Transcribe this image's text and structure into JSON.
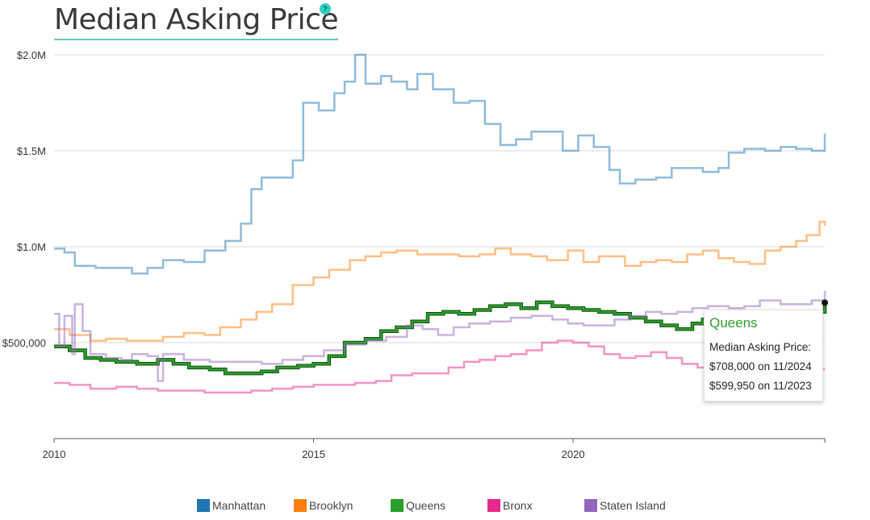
{
  "header": {
    "title": "Median Asking Price",
    "help_label": "?"
  },
  "tooltip": {
    "title": "Queens",
    "label": "Median Asking Price:",
    "line1": "$708,000 on 11/2024",
    "line2": "$599,950 on 11/2023"
  },
  "chart_data": {
    "type": "line",
    "title": "Median Asking Price",
    "xlabel": "",
    "ylabel": "",
    "xlim": [
      2010,
      2024.85
    ],
    "ylim": [
      0,
      2000000
    ],
    "x_ticks": [
      {
        "value": 2010,
        "label": "2010"
      },
      {
        "value": 2015,
        "label": "2015"
      },
      {
        "value": 2020,
        "label": "2020"
      }
    ],
    "y_ticks": [
      {
        "value": 500000,
        "label": "$500,000"
      },
      {
        "value": 1000000,
        "label": "$1.0M"
      },
      {
        "value": 1500000,
        "label": "$1.5M"
      },
      {
        "value": 2000000,
        "label": "$2.0M"
      }
    ],
    "grid": true,
    "step": true,
    "legend_position": "bottom",
    "series": [
      {
        "name": "Manhattan",
        "color": "#1f77b4",
        "points": [
          [
            2010,
            990000
          ],
          [
            2010.2,
            970000
          ],
          [
            2010.4,
            900000
          ],
          [
            2010.8,
            890000
          ],
          [
            2011.5,
            860000
          ],
          [
            2011.8,
            890000
          ],
          [
            2012.1,
            930000
          ],
          [
            2012.5,
            920000
          ],
          [
            2012.9,
            980000
          ],
          [
            2013.3,
            1030000
          ],
          [
            2013.6,
            1120000
          ],
          [
            2013.8,
            1300000
          ],
          [
            2014.0,
            1360000
          ],
          [
            2014.3,
            1360000
          ],
          [
            2014.6,
            1450000
          ],
          [
            2014.8,
            1750000
          ],
          [
            2015.1,
            1710000
          ],
          [
            2015.4,
            1800000
          ],
          [
            2015.6,
            1860000
          ],
          [
            2015.8,
            2000000
          ],
          [
            2016.0,
            1850000
          ],
          [
            2016.3,
            1890000
          ],
          [
            2016.5,
            1860000
          ],
          [
            2016.8,
            1820000
          ],
          [
            2017.0,
            1900000
          ],
          [
            2017.3,
            1820000
          ],
          [
            2017.7,
            1750000
          ],
          [
            2018.0,
            1760000
          ],
          [
            2018.3,
            1640000
          ],
          [
            2018.6,
            1530000
          ],
          [
            2018.9,
            1560000
          ],
          [
            2019.2,
            1600000
          ],
          [
            2019.5,
            1600000
          ],
          [
            2019.8,
            1500000
          ],
          [
            2020.1,
            1580000
          ],
          [
            2020.4,
            1520000
          ],
          [
            2020.7,
            1400000
          ],
          [
            2020.9,
            1330000
          ],
          [
            2021.2,
            1350000
          ],
          [
            2021.6,
            1360000
          ],
          [
            2021.9,
            1410000
          ],
          [
            2022.2,
            1410000
          ],
          [
            2022.5,
            1390000
          ],
          [
            2022.8,
            1410000
          ],
          [
            2023.0,
            1490000
          ],
          [
            2023.3,
            1510000
          ],
          [
            2023.7,
            1500000
          ],
          [
            2024.0,
            1520000
          ],
          [
            2024.3,
            1510000
          ],
          [
            2024.6,
            1500000
          ],
          [
            2024.85,
            1590000
          ]
        ]
      },
      {
        "name": "Brooklyn",
        "color": "#ff7f0e",
        "points": [
          [
            2010,
            570000
          ],
          [
            2010.3,
            540000
          ],
          [
            2010.7,
            510000
          ],
          [
            2011.0,
            520000
          ],
          [
            2011.4,
            510000
          ],
          [
            2011.8,
            510000
          ],
          [
            2012.1,
            530000
          ],
          [
            2012.5,
            550000
          ],
          [
            2012.9,
            540000
          ],
          [
            2013.2,
            580000
          ],
          [
            2013.6,
            620000
          ],
          [
            2013.9,
            660000
          ],
          [
            2014.2,
            700000
          ],
          [
            2014.6,
            800000
          ],
          [
            2015.0,
            840000
          ],
          [
            2015.3,
            880000
          ],
          [
            2015.7,
            930000
          ],
          [
            2016.0,
            950000
          ],
          [
            2016.3,
            970000
          ],
          [
            2016.6,
            980000
          ],
          [
            2017.0,
            960000
          ],
          [
            2017.4,
            960000
          ],
          [
            2017.8,
            950000
          ],
          [
            2018.2,
            960000
          ],
          [
            2018.5,
            990000
          ],
          [
            2018.8,
            960000
          ],
          [
            2019.2,
            950000
          ],
          [
            2019.5,
            930000
          ],
          [
            2019.9,
            980000
          ],
          [
            2020.2,
            920000
          ],
          [
            2020.5,
            950000
          ],
          [
            2020.8,
            950000
          ],
          [
            2021.0,
            900000
          ],
          [
            2021.3,
            920000
          ],
          [
            2021.6,
            930000
          ],
          [
            2021.9,
            920000
          ],
          [
            2022.2,
            960000
          ],
          [
            2022.5,
            980000
          ],
          [
            2022.8,
            940000
          ],
          [
            2023.1,
            920000
          ],
          [
            2023.4,
            910000
          ],
          [
            2023.7,
            980000
          ],
          [
            2024.0,
            1000000
          ],
          [
            2024.3,
            1030000
          ],
          [
            2024.5,
            1060000
          ],
          [
            2024.75,
            1130000
          ],
          [
            2024.85,
            1110000
          ]
        ]
      },
      {
        "name": "Queens",
        "color": "#2ca02c",
        "points": [
          [
            2010,
            480000
          ],
          [
            2010.3,
            460000
          ],
          [
            2010.6,
            420000
          ],
          [
            2010.9,
            410000
          ],
          [
            2011.2,
            400000
          ],
          [
            2011.6,
            390000
          ],
          [
            2012.0,
            410000
          ],
          [
            2012.3,
            390000
          ],
          [
            2012.6,
            370000
          ],
          [
            2013.0,
            360000
          ],
          [
            2013.3,
            340000
          ],
          [
            2013.7,
            340000
          ],
          [
            2014.0,
            350000
          ],
          [
            2014.3,
            370000
          ],
          [
            2014.7,
            380000
          ],
          [
            2015.0,
            390000
          ],
          [
            2015.3,
            430000
          ],
          [
            2015.6,
            500000
          ],
          [
            2016.0,
            520000
          ],
          [
            2016.3,
            560000
          ],
          [
            2016.6,
            580000
          ],
          [
            2016.9,
            610000
          ],
          [
            2017.2,
            650000
          ],
          [
            2017.5,
            660000
          ],
          [
            2017.8,
            650000
          ],
          [
            2018.1,
            670000
          ],
          [
            2018.4,
            690000
          ],
          [
            2018.7,
            700000
          ],
          [
            2019.0,
            680000
          ],
          [
            2019.3,
            710000
          ],
          [
            2019.6,
            690000
          ],
          [
            2019.9,
            680000
          ],
          [
            2020.2,
            670000
          ],
          [
            2020.5,
            660000
          ],
          [
            2020.8,
            650000
          ],
          [
            2021.1,
            630000
          ],
          [
            2021.4,
            610000
          ],
          [
            2021.7,
            590000
          ],
          [
            2022.0,
            570000
          ],
          [
            2022.3,
            600000
          ],
          [
            2022.5,
            620000
          ],
          [
            2022.8,
            610000
          ],
          [
            2023.0,
            600000
          ],
          [
            2023.3,
            610000
          ],
          [
            2023.6,
            620000
          ],
          [
            2024.0,
            620000
          ],
          [
            2024.4,
            640000
          ],
          [
            2024.6,
            660000
          ],
          [
            2024.85,
            708000
          ]
        ]
      },
      {
        "name": "Bronx",
        "color": "#e7298a",
        "points": [
          [
            2010,
            290000
          ],
          [
            2010.3,
            280000
          ],
          [
            2010.7,
            260000
          ],
          [
            2011.2,
            270000
          ],
          [
            2011.6,
            260000
          ],
          [
            2012.0,
            250000
          ],
          [
            2012.5,
            250000
          ],
          [
            2012.9,
            240000
          ],
          [
            2013.4,
            240000
          ],
          [
            2013.8,
            250000
          ],
          [
            2014.2,
            260000
          ],
          [
            2014.6,
            270000
          ],
          [
            2015.0,
            280000
          ],
          [
            2015.4,
            280000
          ],
          [
            2015.8,
            290000
          ],
          [
            2016.2,
            300000
          ],
          [
            2016.5,
            330000
          ],
          [
            2016.9,
            340000
          ],
          [
            2017.3,
            340000
          ],
          [
            2017.6,
            370000
          ],
          [
            2017.9,
            400000
          ],
          [
            2018.2,
            410000
          ],
          [
            2018.5,
            430000
          ],
          [
            2018.8,
            440000
          ],
          [
            2019.1,
            460000
          ],
          [
            2019.4,
            500000
          ],
          [
            2019.7,
            510000
          ],
          [
            2020.0,
            500000
          ],
          [
            2020.3,
            480000
          ],
          [
            2020.6,
            440000
          ],
          [
            2020.9,
            420000
          ],
          [
            2021.2,
            430000
          ],
          [
            2021.5,
            450000
          ],
          [
            2021.8,
            420000
          ],
          [
            2022.1,
            390000
          ],
          [
            2022.4,
            370000
          ],
          [
            2022.7,
            390000
          ],
          [
            2023.0,
            380000
          ],
          [
            2023.4,
            390000
          ],
          [
            2023.8,
            380000
          ],
          [
            2024.2,
            370000
          ],
          [
            2024.6,
            360000
          ],
          [
            2024.85,
            360000
          ]
        ]
      },
      {
        "name": "Staten Island",
        "color": "#9467bd",
        "points": [
          [
            2010,
            650000
          ],
          [
            2010.1,
            480000
          ],
          [
            2010.2,
            640000
          ],
          [
            2010.35,
            440000
          ],
          [
            2010.4,
            700000
          ],
          [
            2010.55,
            560000
          ],
          [
            2010.7,
            440000
          ],
          [
            2011.0,
            420000
          ],
          [
            2011.3,
            410000
          ],
          [
            2011.5,
            440000
          ],
          [
            2011.8,
            430000
          ],
          [
            2012.0,
            300000
          ],
          [
            2012.1,
            440000
          ],
          [
            2012.5,
            410000
          ],
          [
            2013.0,
            400000
          ],
          [
            2013.5,
            400000
          ],
          [
            2014.0,
            390000
          ],
          [
            2014.4,
            410000
          ],
          [
            2014.8,
            430000
          ],
          [
            2015.2,
            460000
          ],
          [
            2015.6,
            490000
          ],
          [
            2016.0,
            510000
          ],
          [
            2016.4,
            530000
          ],
          [
            2016.8,
            590000
          ],
          [
            2017.1,
            570000
          ],
          [
            2017.4,
            540000
          ],
          [
            2017.7,
            580000
          ],
          [
            2018.0,
            600000
          ],
          [
            2018.4,
            610000
          ],
          [
            2018.8,
            630000
          ],
          [
            2019.2,
            640000
          ],
          [
            2019.6,
            620000
          ],
          [
            2019.9,
            600000
          ],
          [
            2020.2,
            590000
          ],
          [
            2020.5,
            590000
          ],
          [
            2020.8,
            620000
          ],
          [
            2021.1,
            640000
          ],
          [
            2021.4,
            660000
          ],
          [
            2021.7,
            650000
          ],
          [
            2022.0,
            660000
          ],
          [
            2022.3,
            680000
          ],
          [
            2022.6,
            690000
          ],
          [
            2023.0,
            680000
          ],
          [
            2023.3,
            690000
          ],
          [
            2023.6,
            720000
          ],
          [
            2024.0,
            700000
          ],
          [
            2024.3,
            700000
          ],
          [
            2024.6,
            720000
          ],
          [
            2024.85,
            770000
          ]
        ]
      }
    ],
    "highlighted_series": "Queens"
  },
  "legend": [
    {
      "label": "Manhattan",
      "color": "#1f77b4"
    },
    {
      "label": "Brooklyn",
      "color": "#ff7f0e"
    },
    {
      "label": "Queens",
      "color": "#2ca02c"
    },
    {
      "label": "Bronx",
      "color": "#e7298a"
    },
    {
      "label": "Staten Island",
      "color": "#9467bd"
    }
  ]
}
